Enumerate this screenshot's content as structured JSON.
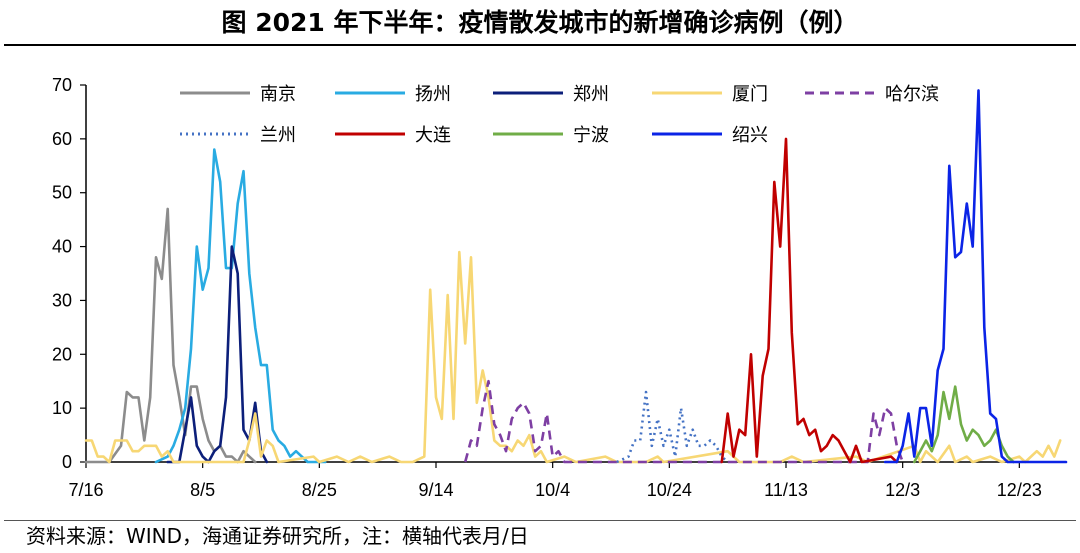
{
  "title": "图  2021 年下半年：疫情散发城市的新增确诊病例（例）",
  "source": "资料来源：WIND，海通证券研究所，注：横轴代表月/日",
  "chart_data": {
    "type": "line",
    "title": "图  2021 年下半年：疫情散发城市的新增确诊病例（例）",
    "xlabel": "",
    "ylabel": "",
    "x_start": "2021-07-16",
    "x_end": "2021-12-31",
    "x_ticks": [
      "7/16",
      "8/5",
      "8/25",
      "9/14",
      "10/4",
      "10/24",
      "11/13",
      "12/3",
      "12/23"
    ],
    "ylim": [
      0,
      70
    ],
    "y_ticks": [
      0,
      10,
      20,
      30,
      40,
      50,
      60,
      70
    ],
    "grid": false,
    "legend_position": "top",
    "series": [
      {
        "name": "南京",
        "color": "#8c8c8c",
        "dash": "solid",
        "points": [
          [
            "2021-07-16",
            0
          ],
          [
            "2021-07-20",
            0
          ],
          [
            "2021-07-22",
            3
          ],
          [
            "2021-07-23",
            13
          ],
          [
            "2021-07-24",
            12
          ],
          [
            "2021-07-25",
            12
          ],
          [
            "2021-07-26",
            4
          ],
          [
            "2021-07-27",
            12
          ],
          [
            "2021-07-28",
            38
          ],
          [
            "2021-07-29",
            34
          ],
          [
            "2021-07-30",
            47
          ],
          [
            "2021-07-31",
            18
          ],
          [
            "2021-08-01",
            12
          ],
          [
            "2021-08-02",
            5
          ],
          [
            "2021-08-03",
            14
          ],
          [
            "2021-08-04",
            14
          ],
          [
            "2021-08-05",
            8
          ],
          [
            "2021-08-06",
            4
          ],
          [
            "2021-08-07",
            2
          ],
          [
            "2021-08-08",
            3
          ],
          [
            "2021-08-09",
            1
          ],
          [
            "2021-08-10",
            1
          ],
          [
            "2021-08-11",
            0
          ],
          [
            "2021-08-12",
            2
          ],
          [
            "2021-08-13",
            1
          ],
          [
            "2021-08-14",
            0
          ]
        ]
      },
      {
        "name": "扬州",
        "color": "#29abe2",
        "dash": "solid",
        "points": [
          [
            "2021-07-28",
            0
          ],
          [
            "2021-07-30",
            1
          ],
          [
            "2021-07-31",
            3
          ],
          [
            "2021-08-01",
            6
          ],
          [
            "2021-08-02",
            10
          ],
          [
            "2021-08-03",
            21
          ],
          [
            "2021-08-04",
            40
          ],
          [
            "2021-08-05",
            32
          ],
          [
            "2021-08-06",
            36
          ],
          [
            "2021-08-07",
            58
          ],
          [
            "2021-08-08",
            52
          ],
          [
            "2021-08-09",
            36
          ],
          [
            "2021-08-10",
            36
          ],
          [
            "2021-08-11",
            48
          ],
          [
            "2021-08-12",
            54
          ],
          [
            "2021-08-13",
            35
          ],
          [
            "2021-08-14",
            25
          ],
          [
            "2021-08-15",
            18
          ],
          [
            "2021-08-16",
            18
          ],
          [
            "2021-08-17",
            6
          ],
          [
            "2021-08-18",
            4
          ],
          [
            "2021-08-19",
            3
          ],
          [
            "2021-08-20",
            1
          ],
          [
            "2021-08-21",
            2
          ],
          [
            "2021-08-22",
            1
          ],
          [
            "2021-08-23",
            0
          ],
          [
            "2021-08-26",
            0
          ]
        ]
      },
      {
        "name": "郑州",
        "color": "#0c1f7a",
        "dash": "solid",
        "points": [
          [
            "2021-07-30",
            0
          ],
          [
            "2021-08-01",
            0
          ],
          [
            "2021-08-02",
            6
          ],
          [
            "2021-08-03",
            12
          ],
          [
            "2021-08-04",
            3
          ],
          [
            "2021-08-05",
            1
          ],
          [
            "2021-08-06",
            0
          ],
          [
            "2021-08-07",
            2
          ],
          [
            "2021-08-08",
            3
          ],
          [
            "2021-08-09",
            12
          ],
          [
            "2021-08-10",
            40
          ],
          [
            "2021-08-11",
            35
          ],
          [
            "2021-08-12",
            6
          ],
          [
            "2021-08-13",
            4
          ],
          [
            "2021-08-14",
            11
          ],
          [
            "2021-08-15",
            2
          ],
          [
            "2021-08-16",
            0
          ]
        ]
      },
      {
        "name": "厦门",
        "color": "#f7d774",
        "dash": "solid",
        "points": [
          [
            "2021-07-16",
            4
          ],
          [
            "2021-07-17",
            4
          ],
          [
            "2021-07-18",
            1
          ],
          [
            "2021-07-19",
            1
          ],
          [
            "2021-07-20",
            0
          ],
          [
            "2021-07-21",
            4
          ],
          [
            "2021-07-22",
            4
          ],
          [
            "2021-07-23",
            4
          ],
          [
            "2021-07-24",
            2
          ],
          [
            "2021-07-25",
            2
          ],
          [
            "2021-07-26",
            3
          ],
          [
            "2021-07-27",
            3
          ],
          [
            "2021-07-28",
            3
          ],
          [
            "2021-07-29",
            1
          ],
          [
            "2021-07-30",
            2
          ],
          [
            "2021-07-31",
            0
          ],
          [
            "2021-08-12",
            0
          ],
          [
            "2021-08-13",
            4
          ],
          [
            "2021-08-14",
            9
          ],
          [
            "2021-08-15",
            1
          ],
          [
            "2021-08-16",
            4
          ],
          [
            "2021-08-17",
            3
          ],
          [
            "2021-08-18",
            0
          ],
          [
            "2021-08-24",
            1
          ],
          [
            "2021-08-25",
            0
          ],
          [
            "2021-08-28",
            1
          ],
          [
            "2021-08-30",
            0
          ],
          [
            "2021-09-01",
            1
          ],
          [
            "2021-09-03",
            0
          ],
          [
            "2021-09-06",
            1
          ],
          [
            "2021-09-08",
            0
          ],
          [
            "2021-09-10",
            0
          ],
          [
            "2021-09-12",
            1
          ],
          [
            "2021-09-13",
            32
          ],
          [
            "2021-09-14",
            12
          ],
          [
            "2021-09-15",
            8
          ],
          [
            "2021-09-16",
            31
          ],
          [
            "2021-09-17",
            8
          ],
          [
            "2021-09-18",
            39
          ],
          [
            "2021-09-19",
            22
          ],
          [
            "2021-09-20",
            38
          ],
          [
            "2021-09-21",
            11
          ],
          [
            "2021-09-22",
            17
          ],
          [
            "2021-09-23",
            12
          ],
          [
            "2021-09-24",
            4
          ],
          [
            "2021-09-25",
            3
          ],
          [
            "2021-09-26",
            3
          ],
          [
            "2021-09-27",
            2
          ],
          [
            "2021-09-28",
            4
          ],
          [
            "2021-09-29",
            3
          ],
          [
            "2021-09-30",
            5
          ],
          [
            "2021-10-01",
            1
          ],
          [
            "2021-10-02",
            2
          ],
          [
            "2021-10-03",
            0
          ],
          [
            "2021-10-06",
            1
          ],
          [
            "2021-10-08",
            0
          ],
          [
            "2021-10-13",
            1
          ],
          [
            "2021-10-15",
            0
          ],
          [
            "2021-10-20",
            0
          ],
          [
            "2021-10-22",
            1
          ],
          [
            "2021-10-23",
            0
          ],
          [
            "2021-11-03",
            2
          ],
          [
            "2021-11-05",
            0
          ],
          [
            "2021-11-12",
            0
          ],
          [
            "2021-11-14",
            1
          ],
          [
            "2021-11-16",
            0
          ],
          [
            "2021-11-25",
            1
          ],
          [
            "2021-11-27",
            0
          ],
          [
            "2021-12-05",
            3
          ],
          [
            "2021-12-06",
            0
          ],
          [
            "2021-12-07",
            2
          ],
          [
            "2021-12-09",
            0
          ],
          [
            "2021-12-11",
            3
          ],
          [
            "2021-12-12",
            0
          ],
          [
            "2021-12-14",
            1
          ],
          [
            "2021-12-15",
            0
          ],
          [
            "2021-12-18",
            1
          ],
          [
            "2021-12-20",
            0
          ],
          [
            "2021-12-23",
            1
          ],
          [
            "2021-12-24",
            0
          ],
          [
            "2021-12-26",
            2
          ],
          [
            "2021-12-27",
            1
          ],
          [
            "2021-12-28",
            3
          ],
          [
            "2021-12-29",
            1
          ],
          [
            "2021-12-30",
            4
          ]
        ]
      },
      {
        "name": "哈尔滨",
        "color": "#7e3fa3",
        "dash": "dashed",
        "points": [
          [
            "2021-09-19",
            0
          ],
          [
            "2021-09-20",
            4
          ],
          [
            "2021-09-21",
            3
          ],
          [
            "2021-09-22",
            10
          ],
          [
            "2021-09-23",
            15
          ],
          [
            "2021-09-24",
            7
          ],
          [
            "2021-09-25",
            5
          ],
          [
            "2021-09-26",
            2
          ],
          [
            "2021-09-27",
            8
          ],
          [
            "2021-09-28",
            10
          ],
          [
            "2021-09-29",
            11
          ],
          [
            "2021-09-30",
            9
          ],
          [
            "2021-10-01",
            2
          ],
          [
            "2021-10-02",
            3
          ],
          [
            "2021-10-03",
            9
          ],
          [
            "2021-10-04",
            1
          ],
          [
            "2021-10-05",
            2
          ],
          [
            "2021-10-06",
            0
          ],
          [
            "2021-11-27",
            0
          ],
          [
            "2021-11-28",
            9
          ],
          [
            "2021-11-29",
            5
          ],
          [
            "2021-11-30",
            10
          ],
          [
            "2021-12-01",
            9
          ],
          [
            "2021-12-02",
            3
          ],
          [
            "2021-12-03",
            0
          ]
        ]
      },
      {
        "name": "兰州",
        "color": "#4472c4",
        "dash": "dotted",
        "points": [
          [
            "2021-10-15",
            0
          ],
          [
            "2021-10-17",
            1
          ],
          [
            "2021-10-18",
            4
          ],
          [
            "2021-10-19",
            4
          ],
          [
            "2021-10-20",
            13
          ],
          [
            "2021-10-21",
            3
          ],
          [
            "2021-10-22",
            8
          ],
          [
            "2021-10-23",
            3
          ],
          [
            "2021-10-24",
            6
          ],
          [
            "2021-10-25",
            1
          ],
          [
            "2021-10-26",
            10
          ],
          [
            "2021-10-27",
            3
          ],
          [
            "2021-10-28",
            6
          ],
          [
            "2021-10-29",
            3
          ],
          [
            "2021-10-30",
            3
          ],
          [
            "2021-10-31",
            4
          ],
          [
            "2021-11-01",
            3
          ],
          [
            "2021-11-02",
            1
          ],
          [
            "2021-11-03",
            0
          ]
        ]
      },
      {
        "name": "大连",
        "color": "#c00000",
        "dash": "solid",
        "points": [
          [
            "2021-11-02",
            0
          ],
          [
            "2021-11-03",
            9
          ],
          [
            "2021-11-04",
            1
          ],
          [
            "2021-11-05",
            6
          ],
          [
            "2021-11-06",
            5
          ],
          [
            "2021-11-07",
            20
          ],
          [
            "2021-11-08",
            1
          ],
          [
            "2021-11-09",
            16
          ],
          [
            "2021-11-10",
            21
          ],
          [
            "2021-11-11",
            52
          ],
          [
            "2021-11-12",
            40
          ],
          [
            "2021-11-13",
            60
          ],
          [
            "2021-11-14",
            24
          ],
          [
            "2021-11-15",
            7
          ],
          [
            "2021-11-16",
            8
          ],
          [
            "2021-11-17",
            5
          ],
          [
            "2021-11-18",
            6
          ],
          [
            "2021-11-19",
            2
          ],
          [
            "2021-11-20",
            3
          ],
          [
            "2021-11-21",
            5
          ],
          [
            "2021-11-22",
            4
          ],
          [
            "2021-11-23",
            2
          ],
          [
            "2021-11-24",
            0
          ],
          [
            "2021-11-25",
            3
          ],
          [
            "2021-11-26",
            0
          ],
          [
            "2021-12-01",
            1
          ],
          [
            "2021-12-02",
            0
          ]
        ]
      },
      {
        "name": "宁波",
        "color": "#70ad47",
        "dash": "solid",
        "points": [
          [
            "2021-12-05",
            0
          ],
          [
            "2021-12-06",
            2
          ],
          [
            "2021-12-07",
            4
          ],
          [
            "2021-12-08",
            2
          ],
          [
            "2021-12-09",
            5
          ],
          [
            "2021-12-10",
            13
          ],
          [
            "2021-12-11",
            8
          ],
          [
            "2021-12-12",
            14
          ],
          [
            "2021-12-13",
            7
          ],
          [
            "2021-12-14",
            4
          ],
          [
            "2021-12-15",
            6
          ],
          [
            "2021-12-16",
            5
          ],
          [
            "2021-12-17",
            3
          ],
          [
            "2021-12-18",
            4
          ],
          [
            "2021-12-19",
            6
          ],
          [
            "2021-12-20",
            3
          ],
          [
            "2021-12-21",
            1
          ],
          [
            "2021-12-22",
            0
          ]
        ]
      },
      {
        "name": "绍兴",
        "color": "#0b24e6",
        "dash": "solid",
        "points": [
          [
            "2021-11-30",
            0
          ],
          [
            "2021-12-02",
            0
          ],
          [
            "2021-12-03",
            3
          ],
          [
            "2021-12-04",
            9
          ],
          [
            "2021-12-05",
            1
          ],
          [
            "2021-12-06",
            10
          ],
          [
            "2021-12-07",
            10
          ],
          [
            "2021-12-08",
            3
          ],
          [
            "2021-12-09",
            17
          ],
          [
            "2021-12-10",
            21
          ],
          [
            "2021-12-11",
            55
          ],
          [
            "2021-12-12",
            38
          ],
          [
            "2021-12-13",
            39
          ],
          [
            "2021-12-14",
            48
          ],
          [
            "2021-12-15",
            40
          ],
          [
            "2021-12-16",
            69
          ],
          [
            "2021-12-17",
            25
          ],
          [
            "2021-12-18",
            9
          ],
          [
            "2021-12-19",
            8
          ],
          [
            "2021-12-20",
            1
          ],
          [
            "2021-12-21",
            0
          ],
          [
            "2021-12-31",
            0
          ]
        ]
      }
    ]
  }
}
